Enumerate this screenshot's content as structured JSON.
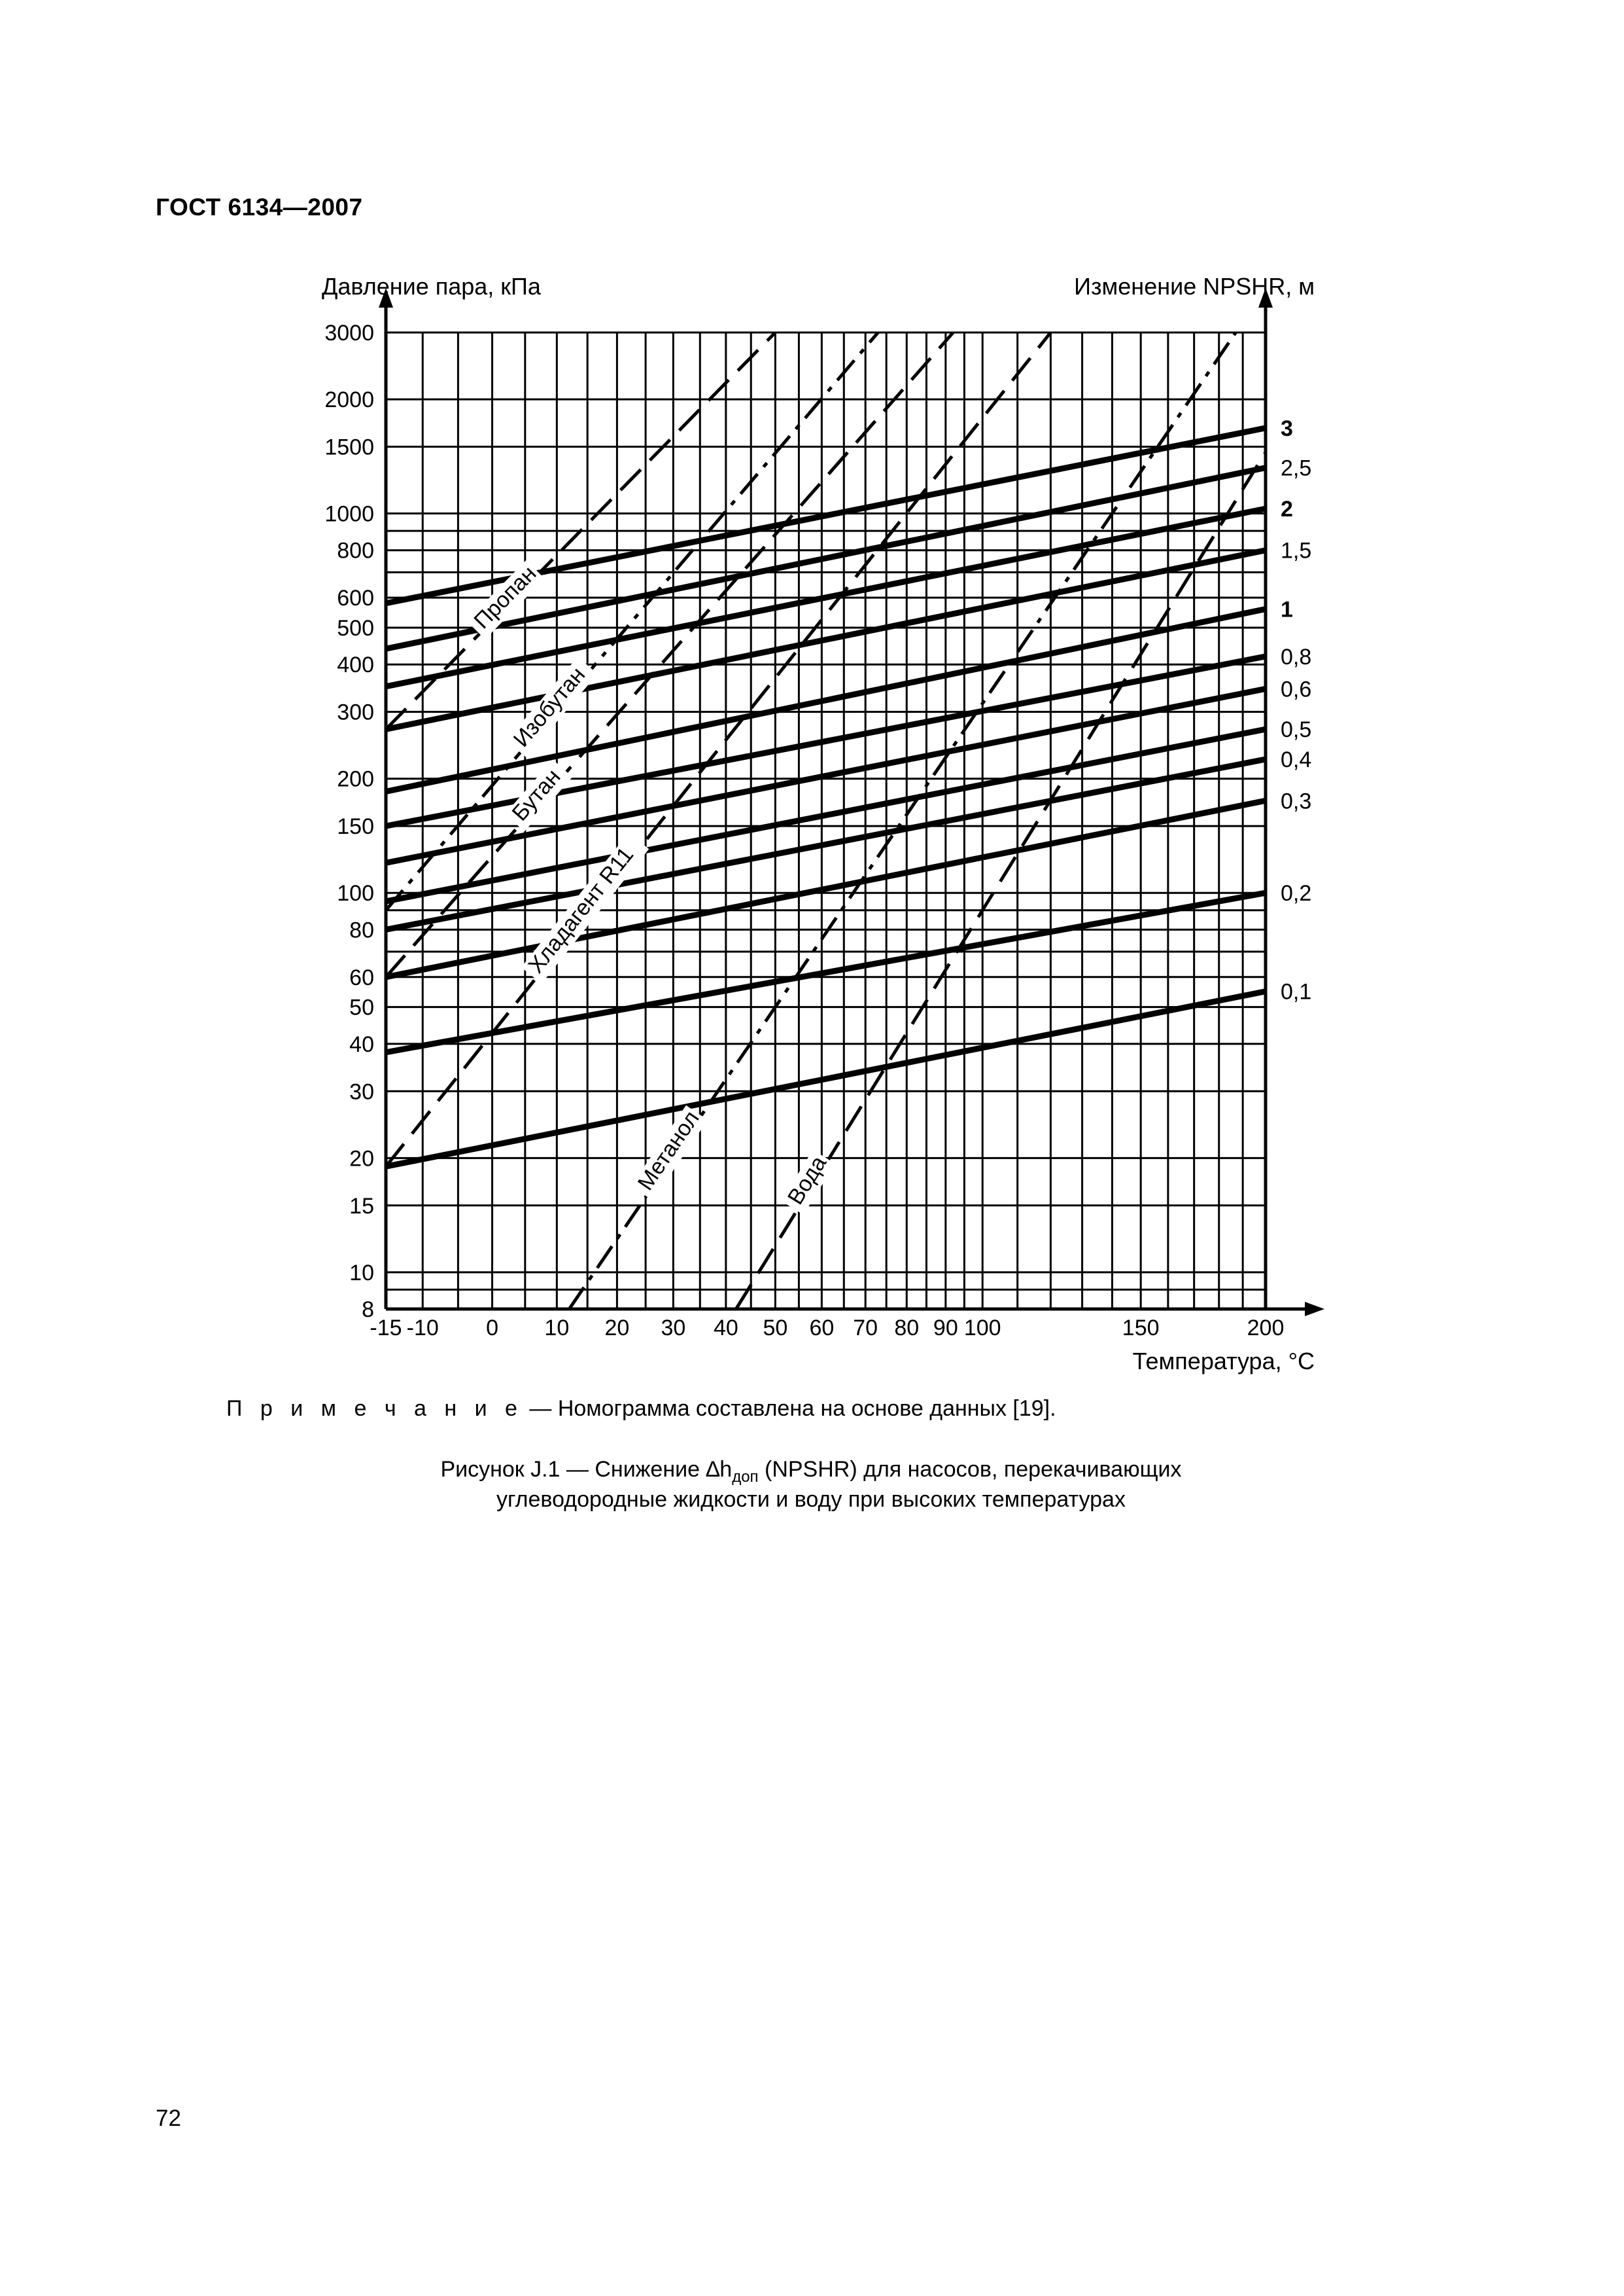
{
  "header": {
    "title": "ГОСТ 6134—2007"
  },
  "chart_data": {
    "type": "line",
    "title": "",
    "ylabel_left": "Давление пара, кПа",
    "ylabel_right": "Изменение NPSHR, м",
    "xlabel": "Температура, °С",
    "x_axis": {
      "scale": "reciprocal (nomogram)",
      "range": [
        -15,
        200
      ],
      "tick_labels": [
        "-15",
        "-10",
        "0",
        "10",
        "20",
        "30",
        "40",
        "50",
        "60",
        "70",
        "80",
        "90",
        "100",
        "150",
        "200"
      ],
      "ticks": [
        -15,
        -10,
        0,
        10,
        20,
        30,
        40,
        50,
        60,
        70,
        80,
        90,
        100,
        150,
        200
      ]
    },
    "y_axis": {
      "scale": "log",
      "range": [
        8,
        3000
      ],
      "tick_labels": [
        "3000",
        "2000",
        "1500",
        "1000",
        "800",
        "600",
        "500",
        "400",
        "300",
        "200",
        "150",
        "100",
        "80",
        "60",
        "50",
        "40",
        "30",
        "20",
        "15",
        "10",
        "8"
      ],
      "ticks": [
        3000,
        2000,
        1500,
        1000,
        800,
        600,
        500,
        400,
        300,
        200,
        150,
        100,
        80,
        60,
        50,
        40,
        30,
        20,
        15,
        10,
        8
      ]
    },
    "grid": true,
    "liquids": [
      {
        "name": "Пропан",
        "style": "dashed",
        "points": [
          [
            -15,
            270
          ],
          [
            50,
            3000
          ]
        ]
      },
      {
        "name": "Изобутан",
        "style": "dash-dot",
        "points": [
          [
            -15,
            90
          ],
          [
            73,
            3000
          ]
        ]
      },
      {
        "name": "Бутан",
        "style": "dashed",
        "points": [
          [
            -15,
            60
          ],
          [
            92,
            3000
          ]
        ]
      },
      {
        "name": "Хладагент R11",
        "style": "dashed",
        "points": [
          [
            -15,
            19
          ],
          [
            120,
            3000
          ]
        ]
      },
      {
        "name": "Метанол",
        "style": "dash-dot",
        "points": [
          [
            12,
            8
          ],
          [
            187,
            3000
          ]
        ]
      },
      {
        "name": "Вода",
        "style": "dashed",
        "points": [
          [
            42,
            8
          ],
          [
            200,
            1450
          ]
        ]
      }
    ],
    "npshr_lines": [
      {
        "label": "3",
        "points": [
          [
            -15,
            580
          ],
          [
            200,
            1680
          ]
        ]
      },
      {
        "label": "2,5",
        "points": [
          [
            -15,
            440
          ],
          [
            200,
            1320
          ]
        ]
      },
      {
        "label": "2",
        "points": [
          [
            -15,
            350
          ],
          [
            200,
            1030
          ]
        ]
      },
      {
        "label": "1,5",
        "points": [
          [
            -15,
            270
          ],
          [
            200,
            800
          ]
        ]
      },
      {
        "label": "1",
        "points": [
          [
            -15,
            185
          ],
          [
            200,
            560
          ]
        ]
      },
      {
        "label": "0,8",
        "points": [
          [
            -15,
            150
          ],
          [
            200,
            420
          ]
        ]
      },
      {
        "label": "0,6",
        "points": [
          [
            -15,
            120
          ],
          [
            200,
            345
          ]
        ]
      },
      {
        "label": "0,5",
        "points": [
          [
            -15,
            95
          ],
          [
            200,
            270
          ]
        ]
      },
      {
        "label": "0,4",
        "points": [
          [
            -15,
            80
          ],
          [
            200,
            225
          ]
        ]
      },
      {
        "label": "0,3",
        "points": [
          [
            -15,
            60
          ],
          [
            200,
            175
          ]
        ]
      },
      {
        "label": "0,2",
        "points": [
          [
            -15,
            38
          ],
          [
            200,
            100
          ]
        ]
      },
      {
        "label": "0,1",
        "points": [
          [
            -15,
            19
          ],
          [
            200,
            55
          ]
        ]
      }
    ]
  },
  "note": {
    "prefix": "П р и м е ч а н и е",
    "text": " — Номограмма составлена на основе данных  [19]."
  },
  "caption": {
    "line1": "Рисунок J.1 — Снижение ∆h",
    "subscript": "доп",
    "line1_rest": " (NPSHR) для насосов, перекачивающих",
    "line2": "углеводородные жидкости и воду при высоких температурах"
  },
  "page_number": "72"
}
